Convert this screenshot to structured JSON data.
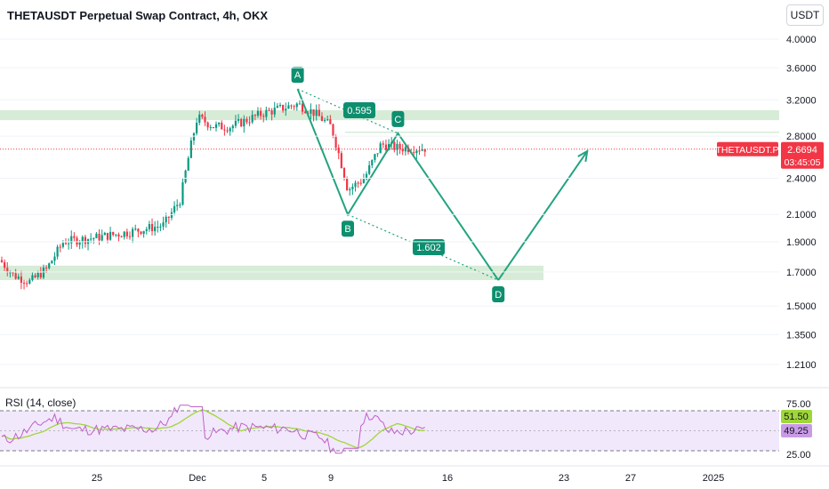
{
  "header": {
    "title": "THETAUSDT Perpetual Swap Contract, 4h, OKX",
    "currency": "USDT"
  },
  "colors": {
    "up": "#089981",
    "down": "#f23645",
    "pattern": "#22a37f",
    "zone": "#c8e6c9",
    "label_bg": "#0d8f6f",
    "rsi_line": "#c060c8",
    "rsi_ma": "#9fd63a",
    "rsi_band": "#f2e8fb",
    "price_badge": "#f23645"
  },
  "price_badge": {
    "symbol": "THETAUSDT.P",
    "price": "2.6694",
    "countdown": "03:45:05"
  },
  "rsi": {
    "title": "RSI (14, close)",
    "ticks": [
      "75.00",
      "25.00"
    ],
    "value": "51.50",
    "ma_value": "49.25"
  },
  "chart_data": {
    "type": "candlestick",
    "y_scale": "log",
    "y_ticks": [
      4.0,
      3.6,
      3.2,
      2.8,
      2.4,
      2.1,
      1.9,
      1.7,
      1.5,
      1.35,
      1.21
    ],
    "y_tick_labels": [
      "4.0000",
      "3.6000",
      "3.2000",
      "2.8000",
      "2.4000",
      "2.1000",
      "1.9000",
      "1.7000",
      "1.5000",
      "1.3500",
      "1.2100"
    ],
    "x_tick_labels": [
      "25",
      "Dec",
      "5",
      "9",
      "16",
      "23",
      "27",
      "2025"
    ],
    "price_path": [
      {
        "date": "Nov 19",
        "price": 1.8
      },
      {
        "date": "Nov 20",
        "price": 1.68
      },
      {
        "date": "Nov 21",
        "price": 1.64
      },
      {
        "date": "Nov 22",
        "price": 1.72
      },
      {
        "date": "Nov 23",
        "price": 1.9
      },
      {
        "date": "Nov 25",
        "price": 1.93
      },
      {
        "date": "Nov 27",
        "price": 1.97
      },
      {
        "date": "Nov 29",
        "price": 2.02
      },
      {
        "date": "Nov 30",
        "price": 2.22
      },
      {
        "date": "Dec 1",
        "price": 3.0
      },
      {
        "date": "Dec 2",
        "price": 2.9
      },
      {
        "date": "Dec 3",
        "price": 2.9
      },
      {
        "date": "Dec 5",
        "price": 3.05
      },
      {
        "date": "Dec 7",
        "price": 3.15
      },
      {
        "date": "Dec 8",
        "price": 3.05
      },
      {
        "date": "Dec 9",
        "price": 2.9
      },
      {
        "date": "Dec 10",
        "price": 2.3
      },
      {
        "date": "Dec 11",
        "price": 2.4
      },
      {
        "date": "Dec 12",
        "price": 2.72
      },
      {
        "date": "Dec 13",
        "price": 2.68
      }
    ],
    "pattern_points": [
      {
        "label": "A",
        "date": "Dec 7",
        "price": 3.33
      },
      {
        "label": "B",
        "date": "Dec 10",
        "price": 2.1
      },
      {
        "label": "C",
        "date": "Dec 13",
        "price": 2.83
      },
      {
        "label": "D",
        "date": "Dec 19",
        "price": 1.65
      }
    ],
    "projection_end": {
      "date": "Dec 24",
      "price": 2.65
    },
    "ratios": [
      "0.595",
      "1.602"
    ],
    "zones": [
      {
        "from_price": 2.97,
        "to_price": 3.08
      },
      {
        "from_price": 1.65,
        "to_price": 1.74
      }
    ]
  }
}
